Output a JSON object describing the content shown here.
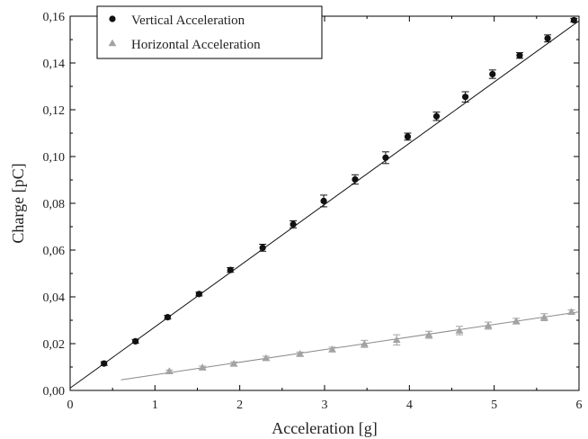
{
  "chart_data": {
    "type": "scatter",
    "title": "",
    "xlabel": "Acceleration [g]",
    "ylabel": "Charge [pC]",
    "xlim": [
      0,
      6
    ],
    "ylim": [
      0,
      0.16
    ],
    "x_ticks": [
      "0",
      "1",
      "2",
      "3",
      "4",
      "5",
      "6"
    ],
    "y_ticks": [
      "0,00",
      "0,02",
      "0,04",
      "0,06",
      "0,08",
      "0,10",
      "0,12",
      "0,14",
      "0,16"
    ],
    "grid": false,
    "legend_position": "top-left",
    "series": [
      {
        "name": "Vertical Acceleration",
        "marker": "circle",
        "color": "#111111",
        "x": [
          0.4,
          0.77,
          1.15,
          1.52,
          1.89,
          2.27,
          2.63,
          2.99,
          3.36,
          3.72,
          3.98,
          4.32,
          4.66,
          4.98,
          5.3,
          5.63,
          5.94
        ],
        "y": [
          0.0115,
          0.021,
          0.0313,
          0.0412,
          0.0515,
          0.061,
          0.071,
          0.081,
          0.0902,
          0.0995,
          0.1085,
          0.1172,
          0.1255,
          0.1352,
          0.1432,
          0.1505,
          0.1583
        ],
        "err": [
          0.0008,
          0.0008,
          0.0008,
          0.0008,
          0.001,
          0.0015,
          0.0015,
          0.0025,
          0.002,
          0.0025,
          0.0015,
          0.0018,
          0.0022,
          0.0018,
          0.0012,
          0.0015,
          0.0008
        ],
        "fit": {
          "x": [
            0,
            6
          ],
          "y": [
            0.001,
            0.158
          ]
        }
      },
      {
        "name": "Horizontal Acceleration",
        "marker": "triangle",
        "color": "#a3a3a3",
        "x": [
          1.17,
          1.56,
          1.93,
          2.31,
          2.71,
          3.09,
          3.47,
          3.85,
          4.23,
          4.59,
          4.93,
          5.26,
          5.59,
          5.91
        ],
        "y": [
          0.0082,
          0.0098,
          0.0114,
          0.0138,
          0.0156,
          0.0175,
          0.0199,
          0.0216,
          0.0238,
          0.0256,
          0.0277,
          0.0296,
          0.0313,
          0.0336
        ],
        "err": [
          0.0005,
          0.0006,
          0.0008,
          0.0008,
          0.0008,
          0.001,
          0.0015,
          0.0022,
          0.0015,
          0.0018,
          0.0015,
          0.0012,
          0.0015,
          0.0008
        ],
        "fit": {
          "x": [
            0.6,
            6
          ],
          "y": [
            0.0045,
            0.0336
          ]
        }
      }
    ]
  }
}
